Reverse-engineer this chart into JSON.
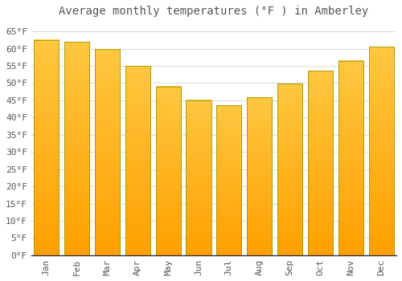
{
  "title": "Average monthly temperatures (°F ) in Amberley",
  "months": [
    "Jan",
    "Feb",
    "Mar",
    "Apr",
    "May",
    "Jun",
    "Jul",
    "Aug",
    "Sep",
    "Oct",
    "Nov",
    "Dec"
  ],
  "values": [
    62.5,
    62.0,
    59.8,
    55.0,
    49.0,
    45.0,
    43.5,
    45.8,
    49.8,
    53.5,
    56.5,
    60.5
  ],
  "bar_color_top": "#FFC020",
  "bar_color_bottom": "#FFA000",
  "bar_edge_color": "#888800",
  "background_color": "#FFFFFF",
  "plot_bg_color": "#FFFFFF",
  "grid_color": "#DDDDDD",
  "text_color": "#555555",
  "ylim": [
    0,
    68
  ],
  "yticks": [
    0,
    5,
    10,
    15,
    20,
    25,
    30,
    35,
    40,
    45,
    50,
    55,
    60,
    65
  ],
  "title_fontsize": 10,
  "tick_fontsize": 8
}
